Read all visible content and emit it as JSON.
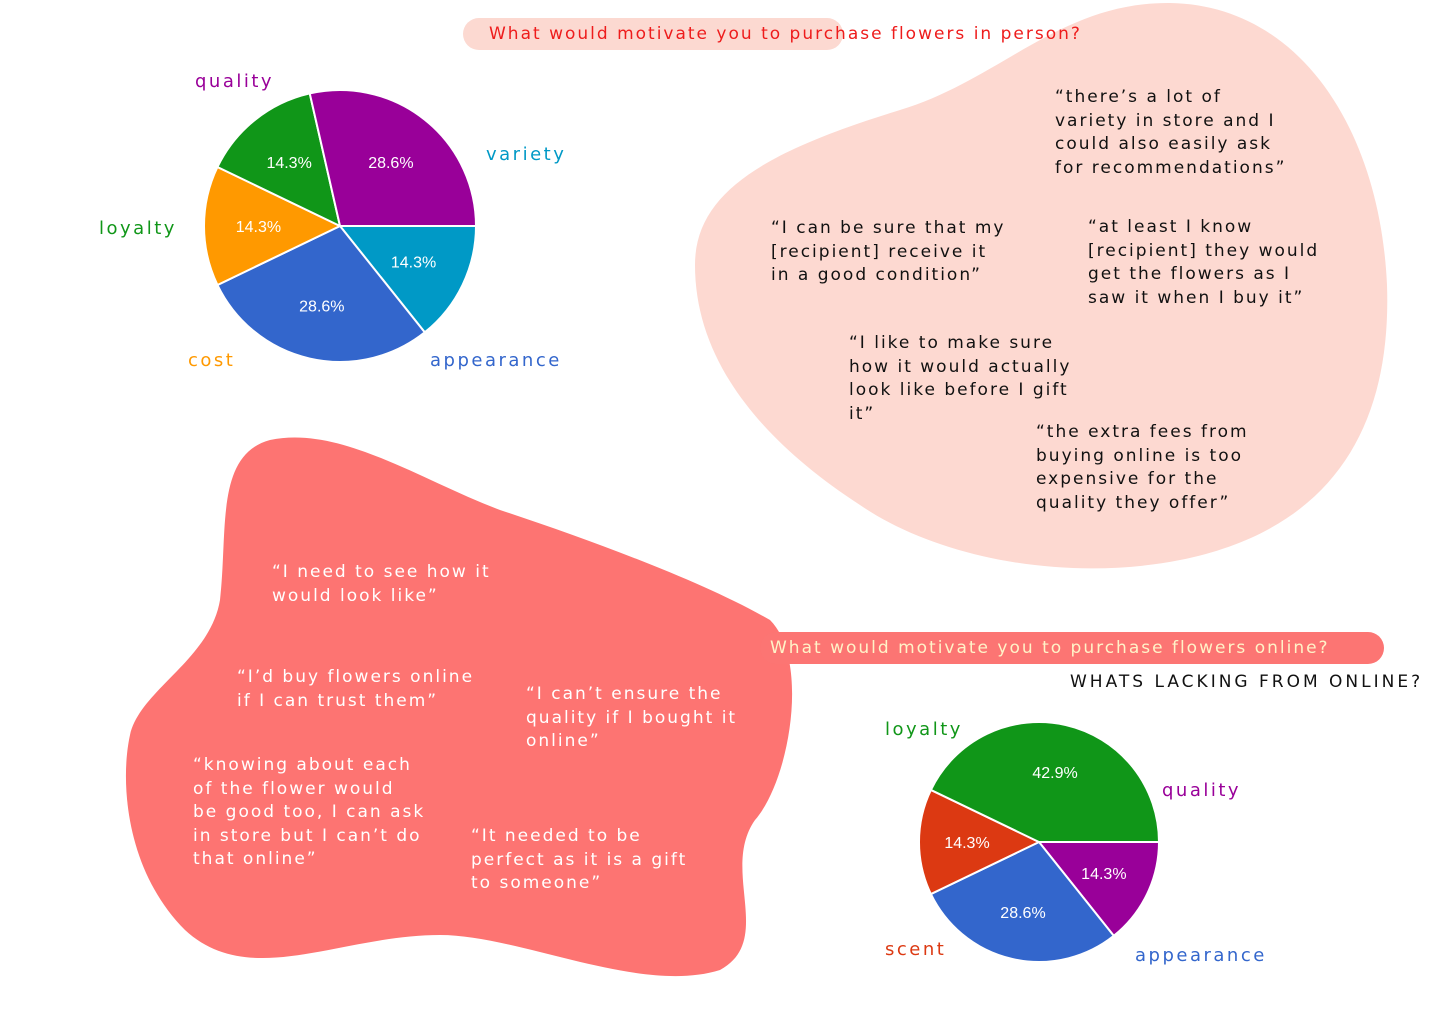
{
  "colors": {
    "blob_light": "#fdd9d1",
    "blob_coral": "#fd7472",
    "heading_red": "#ee1c1c",
    "heading_cream": "#fff3c8"
  },
  "headings": {
    "in_person": "What would motivate you to purchase flowers in person?",
    "online": "What would motivate you to purchase flowers online?",
    "lacking": "WHATS LACKING FROM ONLINE?"
  },
  "quotes_in_person": [
    "“there’s a lot of\nvariety in store and I\ncould also easily ask\nfor recommendations”",
    "“I can be sure that my\n[recipient] receive it\nin a good condition”",
    "“at least I know\n[recipient] they would\nget the flowers as I\nsaw it when I buy it”",
    "“I like to make sure\nhow it would actually\nlook like before I gift\nit”",
    "“the extra fees from\nbuying online is too\nexpensive for the\nquality they offer”"
  ],
  "quotes_online": [
    "“I need to see how it\nwould look like”",
    "“I’d buy flowers online\nif I can trust them”",
    "“I can’t ensure the\nquality if I bought it\nonline”",
    "“knowing about each\nof the flower would\nbe good too, I can ask\nin store but I can’t do\nthat online”",
    "“It needed to be\nperfect as it is a gift\nto someone”"
  ],
  "chart_data": [
    {
      "type": "pie",
      "title": "",
      "slices": [
        {
          "label": "variety",
          "value": 14.3,
          "display": "14.3%",
          "color": "#0099c6"
        },
        {
          "label": "appearance",
          "value": 28.6,
          "display": "28.6%",
          "color": "#3366cc"
        },
        {
          "label": "cost",
          "value": 14.3,
          "display": "14.3%",
          "color": "#ff9900"
        },
        {
          "label": "loyalty",
          "value": 14.3,
          "display": "14.3%",
          "color": "#109618"
        },
        {
          "label": "quality",
          "value": 28.6,
          "display": "28.6%",
          "color": "#990099"
        }
      ]
    },
    {
      "type": "pie",
      "title": "",
      "slices": [
        {
          "label": "quality",
          "value": 14.3,
          "display": "14.3%",
          "color": "#990099"
        },
        {
          "label": "appearance",
          "value": 28.6,
          "display": "28.6%",
          "color": "#3366cc"
        },
        {
          "label": "scent",
          "value": 14.3,
          "display": "14.3%",
          "color": "#dc3912"
        },
        {
          "label": "loyalty",
          "value": 42.9,
          "display": "42.9%",
          "color": "#109618"
        }
      ]
    }
  ]
}
